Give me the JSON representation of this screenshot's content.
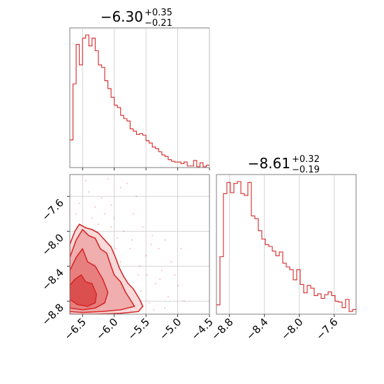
{
  "chart_data": {
    "type": "corner",
    "color": "#d62728",
    "grid": true,
    "hist_x": {
      "title": {
        "value": "−6.30",
        "plus": "+0.35",
        "minus": "−0.21"
      },
      "xlim": [
        -6.7,
        -4.5
      ],
      "xticks": [
        -6.5,
        -6.0,
        -5.5,
        -5.0,
        -4.5
      ],
      "xtick_labels": [
        "−6.5",
        "−6.0",
        "−5.5",
        "−5.0",
        "−4.5"
      ],
      "bin_edges_start": -6.7,
      "bin_width": 0.05,
      "counts": [
        35,
        106,
        156,
        130,
        164,
        168,
        154,
        164,
        148,
        130,
        127,
        110,
        100,
        89,
        79,
        76,
        66,
        62,
        59,
        49,
        46,
        42,
        43,
        41,
        34,
        31,
        26,
        24,
        20,
        16,
        14,
        10,
        8,
        7,
        7,
        5,
        7,
        2,
        2,
        9,
        1,
        6,
        1,
        3,
        1,
        3,
        1,
        1,
        0,
        1,
        1,
        0,
        0,
        0,
        0,
        1,
        0,
        1,
        0,
        0,
        0,
        0,
        0,
        0,
        0,
        0,
        0,
        0,
        0,
        0,
        0,
        0,
        0,
        1
      ],
      "counts_full": [
        35,
        106,
        156,
        130,
        164,
        168,
        154,
        164,
        148,
        130,
        127,
        110,
        100,
        89,
        79,
        76,
        66,
        62,
        59,
        49,
        46,
        42,
        43,
        41,
        34,
        31,
        26,
        24,
        20,
        16,
        14,
        10,
        8,
        7,
        7,
        5,
        7,
        2,
        2,
        9,
        1,
        6,
        1,
        3,
        1,
        3,
        1,
        1,
        0,
        1,
        1,
        0,
        0,
        0,
        0,
        1,
        0,
        1,
        0,
        0,
        0,
        0,
        0,
        0,
        0,
        0,
        0,
        0,
        0,
        0,
        0,
        0,
        0,
        1
      ]
    },
    "hist_y": {
      "title": {
        "value": "−8.61",
        "plus": "+0.32",
        "minus": "−0.19"
      },
      "xlim": [
        -8.95,
        -7.35
      ],
      "xticks": [
        -8.8,
        -8.4,
        -8.0,
        -7.6
      ],
      "xtick_labels": [
        "−8.8",
        "−8.4",
        "−8.0",
        "−7.6"
      ],
      "bin_edges_start": -8.95,
      "bin_width": 0.04,
      "counts": [
        10,
        62,
        130,
        142,
        131,
        141,
        143,
        130,
        128,
        142,
        106,
        103,
        90,
        81,
        75,
        73,
        68,
        63,
        67,
        55,
        51,
        48,
        37,
        48,
        32,
        23,
        31,
        28,
        20,
        22,
        17,
        21,
        24,
        20,
        14,
        13,
        7,
        16,
        3,
        5,
        4,
        3,
        2,
        6,
        2,
        2,
        2,
        1,
        1,
        3
      ]
    },
    "scatter_2d": {
      "xlim": [
        -6.7,
        -4.5
      ],
      "ylim": [
        -8.95,
        -7.35
      ],
      "xticks": [
        -6.5,
        -6.0,
        -5.5,
        -5.0,
        -4.5
      ],
      "xtick_labels": [
        "−6.5",
        "−6.0",
        "−5.5",
        "−5.0",
        "−4.5"
      ],
      "yticks": [
        -7.6,
        -8.0,
        -8.4,
        -8.8
      ],
      "ytick_labels": [
        "−7.6",
        "−8.0",
        "−8.4",
        "−8.8"
      ],
      "contour_levels": [
        [
          [
            -6.7,
            -8.62
          ],
          [
            -6.62,
            -8.55
          ],
          [
            -6.52,
            -8.5
          ],
          [
            -6.45,
            -8.58
          ],
          [
            -6.35,
            -8.6
          ],
          [
            -6.28,
            -8.72
          ],
          [
            -6.3,
            -8.82
          ],
          [
            -6.42,
            -8.86
          ],
          [
            -6.58,
            -8.84
          ],
          [
            -6.7,
            -8.78
          ]
        ],
        [
          [
            -6.7,
            -8.45
          ],
          [
            -6.6,
            -8.3
          ],
          [
            -6.5,
            -8.2
          ],
          [
            -6.42,
            -8.35
          ],
          [
            -6.3,
            -8.4
          ],
          [
            -6.18,
            -8.55
          ],
          [
            -6.1,
            -8.7
          ],
          [
            -6.15,
            -8.82
          ],
          [
            -6.3,
            -8.88
          ],
          [
            -6.5,
            -8.9
          ],
          [
            -6.7,
            -8.88
          ]
        ],
        [
          [
            -6.7,
            -8.3
          ],
          [
            -6.6,
            -8.1
          ],
          [
            -6.5,
            -7.98
          ],
          [
            -6.4,
            -8.05
          ],
          [
            -6.3,
            -8.08
          ],
          [
            -6.22,
            -8.2
          ],
          [
            -6.12,
            -8.25
          ],
          [
            -6.05,
            -8.4
          ],
          [
            -6.0,
            -8.5
          ],
          [
            -5.9,
            -8.58
          ],
          [
            -5.82,
            -8.7
          ],
          [
            -5.75,
            -8.78
          ],
          [
            -5.68,
            -8.86
          ],
          [
            -5.9,
            -8.9
          ],
          [
            -6.2,
            -8.92
          ],
          [
            -6.5,
            -8.93
          ],
          [
            -6.7,
            -8.92
          ]
        ],
        [
          [
            -6.7,
            -8.15
          ],
          [
            -6.62,
            -8.0
          ],
          [
            -6.55,
            -7.92
          ],
          [
            -6.45,
            -7.96
          ],
          [
            -6.35,
            -7.98
          ],
          [
            -6.25,
            -8.02
          ],
          [
            -6.15,
            -8.1
          ],
          [
            -6.05,
            -8.18
          ],
          [
            -5.98,
            -8.3
          ],
          [
            -5.92,
            -8.42
          ],
          [
            -5.85,
            -8.52
          ],
          [
            -5.78,
            -8.6
          ],
          [
            -5.7,
            -8.66
          ],
          [
            -5.6,
            -8.78
          ],
          [
            -5.55,
            -8.86
          ],
          [
            -5.62,
            -8.92
          ],
          [
            -5.9,
            -8.94
          ],
          [
            -6.3,
            -8.95
          ],
          [
            -6.7,
            -8.95
          ]
        ]
      ],
      "scatter_points": [
        [
          -6.4,
          -7.55
        ],
        [
          -6.2,
          -7.62
        ],
        [
          -6.05,
          -7.7
        ],
        [
          -5.9,
          -7.5
        ],
        [
          -5.7,
          -7.8
        ],
        [
          -5.55,
          -7.95
        ],
        [
          -5.4,
          -8.05
        ],
        [
          -5.3,
          -8.2
        ],
        [
          -5.2,
          -8.1
        ],
        [
          -5.1,
          -8.35
        ],
        [
          -5.05,
          -8.5
        ],
        [
          -5.35,
          -8.6
        ],
        [
          -5.15,
          -8.75
        ],
        [
          -5.45,
          -8.82
        ],
        [
          -5.6,
          -8.4
        ],
        [
          -5.75,
          -8.2
        ],
        [
          -5.85,
          -8.0
        ],
        [
          -6.0,
          -7.85
        ],
        [
          -6.15,
          -7.8
        ],
        [
          -6.3,
          -7.72
        ],
        [
          -6.55,
          -7.68
        ],
        [
          -6.6,
          -7.8
        ],
        [
          -6.25,
          -7.92
        ],
        [
          -5.95,
          -8.08
        ],
        [
          -5.5,
          -8.28
        ],
        [
          -5.25,
          -8.45
        ],
        [
          -5.0,
          -8.62
        ],
        [
          -4.95,
          -8.2
        ],
        [
          -5.65,
          -7.6
        ],
        [
          -5.8,
          -7.45
        ],
        [
          -6.1,
          -7.4
        ],
        [
          -6.45,
          -7.42
        ],
        [
          -5.38,
          -8.9
        ],
        [
          -5.2,
          -8.88
        ],
        [
          -4.9,
          -8.8
        ],
        [
          -6.35,
          -7.85
        ],
        [
          -6.58,
          -7.95
        ],
        [
          -6.05,
          -7.95
        ],
        [
          -5.72,
          -8.1
        ],
        [
          -5.42,
          -8.15
        ],
        [
          -5.28,
          -8.55
        ],
        [
          -5.58,
          -8.68
        ],
        [
          -5.48,
          -8.5
        ],
        [
          -5.62,
          -8.5
        ],
        [
          -5.9,
          -8.35
        ],
        [
          -5.98,
          -8.2
        ]
      ]
    }
  }
}
